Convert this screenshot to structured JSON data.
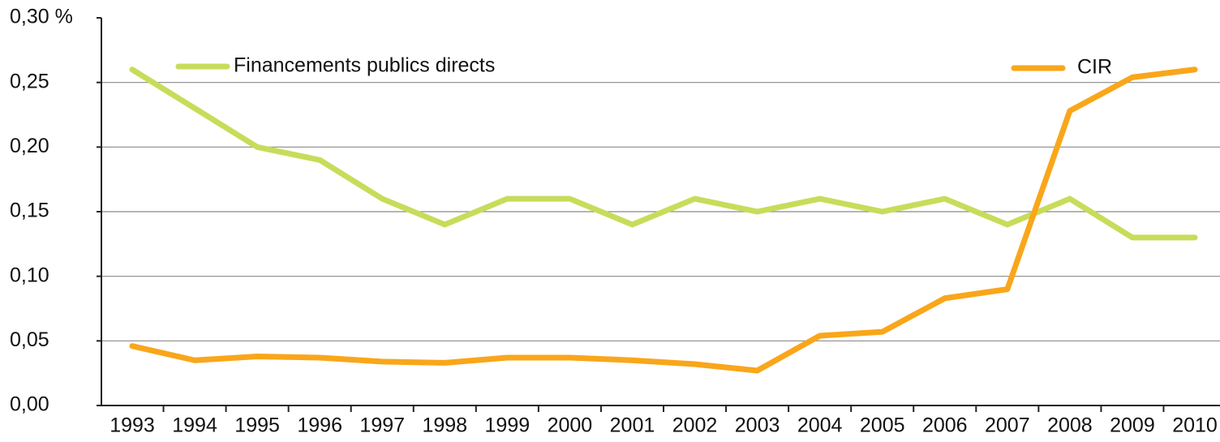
{
  "chart_data": {
    "type": "line",
    "categories": [
      "1993",
      "1994",
      "1995",
      "1996",
      "1997",
      "1998",
      "1999",
      "2000",
      "2001",
      "2002",
      "2003",
      "2004",
      "2005",
      "2006",
      "2007",
      "2008",
      "2009",
      "2010"
    ],
    "series": [
      {
        "name": "Financements publics directs",
        "color": "#c8dc5a",
        "values": [
          0.26,
          0.23,
          0.2,
          0.19,
          0.16,
          0.14,
          0.16,
          0.16,
          0.14,
          0.16,
          0.15,
          0.16,
          0.15,
          0.16,
          0.14,
          0.16,
          0.13,
          0.13
        ]
      },
      {
        "name": "CIR",
        "color": "#f9a61a",
        "values": [
          0.046,
          0.035,
          0.038,
          0.037,
          0.034,
          0.033,
          0.037,
          0.037,
          0.035,
          0.032,
          0.027,
          0.054,
          0.057,
          0.083,
          0.09,
          0.228,
          0.254,
          0.26
        ]
      }
    ],
    "ylim": [
      0,
      0.3
    ],
    "yticks": [
      {
        "value": 0,
        "label": "0,00"
      },
      {
        "value": 0.05,
        "label": "0,05"
      },
      {
        "value": 0.1,
        "label": "0,10"
      },
      {
        "value": 0.15,
        "label": "0,15"
      },
      {
        "value": 0.2,
        "label": "0,20"
      },
      {
        "value": 0.25,
        "label": "0,25"
      },
      {
        "value": 0.3,
        "label": "0,30 %"
      }
    ],
    "grid": true
  }
}
